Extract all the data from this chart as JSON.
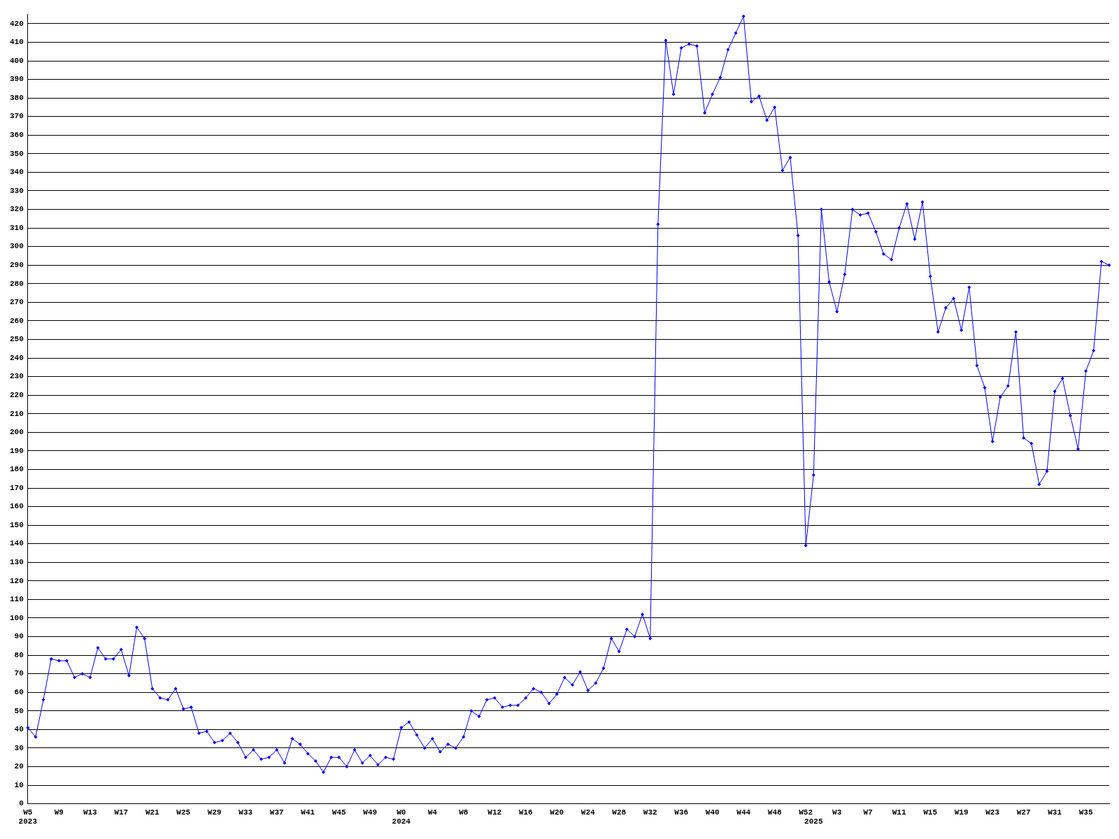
{
  "chart_data": {
    "type": "line",
    "categories": [
      "W5\n2023",
      null,
      null,
      null,
      "W9",
      null,
      null,
      null,
      "W13",
      null,
      null,
      null,
      "W17",
      null,
      null,
      null,
      "W21",
      null,
      null,
      null,
      "W25",
      null,
      null,
      null,
      "W29",
      null,
      null,
      null,
      "W33",
      null,
      null,
      null,
      "W37",
      null,
      null,
      null,
      "W41",
      null,
      null,
      null,
      "W45",
      null,
      null,
      null,
      "W49",
      null,
      null,
      null,
      "W0\n2024",
      null,
      null,
      null,
      "W4",
      null,
      null,
      null,
      "W8",
      null,
      null,
      null,
      "W12",
      null,
      null,
      null,
      "W16",
      null,
      null,
      null,
      "W20",
      null,
      null,
      null,
      "W24",
      null,
      null,
      null,
      "W28",
      null,
      null,
      null,
      "W32",
      null,
      null,
      null,
      "W36",
      null,
      null,
      null,
      "W40",
      null,
      null,
      null,
      "W44",
      null,
      null,
      null,
      "W48",
      null,
      null,
      null,
      "W52",
      "\n2025",
      null,
      null,
      "W3",
      null,
      null,
      null,
      "W7",
      null,
      null,
      null,
      "W11",
      null,
      null,
      null,
      "W15",
      null,
      null,
      null,
      "W19",
      null,
      null,
      null,
      "W23",
      null,
      null,
      null,
      "W27",
      null,
      null,
      null,
      "W31",
      null,
      null,
      null,
      "W35",
      null,
      null,
      null
    ],
    "values": [
      41,
      36,
      56,
      78,
      77,
      77,
      68,
      70,
      68,
      84,
      78,
      78,
      83,
      69,
      95,
      89,
      62,
      57,
      56,
      62,
      51,
      52,
      38,
      39,
      33,
      34,
      38,
      33,
      25,
      29,
      24,
      25,
      29,
      22,
      35,
      32,
      27,
      23,
      17,
      25,
      25,
      20,
      29,
      22,
      26,
      21,
      25,
      24,
      41,
      44,
      37,
      30,
      35,
      28,
      32,
      30,
      36,
      50,
      47,
      56,
      57,
      52,
      53,
      53,
      57,
      62,
      60,
      54,
      59,
      68,
      64,
      71,
      61,
      65,
      73,
      89,
      82,
      94,
      90,
      102,
      89,
      312,
      411,
      382,
      407,
      409,
      408,
      372,
      382,
      391,
      406,
      415,
      424,
      378,
      381,
      368,
      375,
      341,
      348,
      306,
      139,
      177,
      320,
      281,
      265,
      285,
      320,
      317,
      318,
      308,
      296,
      293,
      310,
      323,
      304,
      324,
      284,
      254,
      267,
      272,
      255,
      278,
      236,
      224,
      195,
      219,
      225,
      254,
      197,
      194,
      172,
      179,
      222,
      229,
      209,
      191,
      233,
      244,
      292,
      290
    ],
    "color": "#0000ff",
    "marker": "diamond",
    "line_style": "solid",
    "ylim": [
      0,
      425
    ],
    "yticks": [
      0,
      10,
      20,
      30,
      40,
      50,
      60,
      70,
      80,
      90,
      100,
      110,
      120,
      130,
      140,
      150,
      160,
      170,
      180,
      190,
      200,
      210,
      220,
      230,
      240,
      250,
      260,
      270,
      280,
      290,
      300,
      310,
      320,
      330,
      340,
      350,
      360,
      370,
      380,
      390,
      400,
      410,
      420
    ],
    "grid": "y",
    "legend": false
  }
}
